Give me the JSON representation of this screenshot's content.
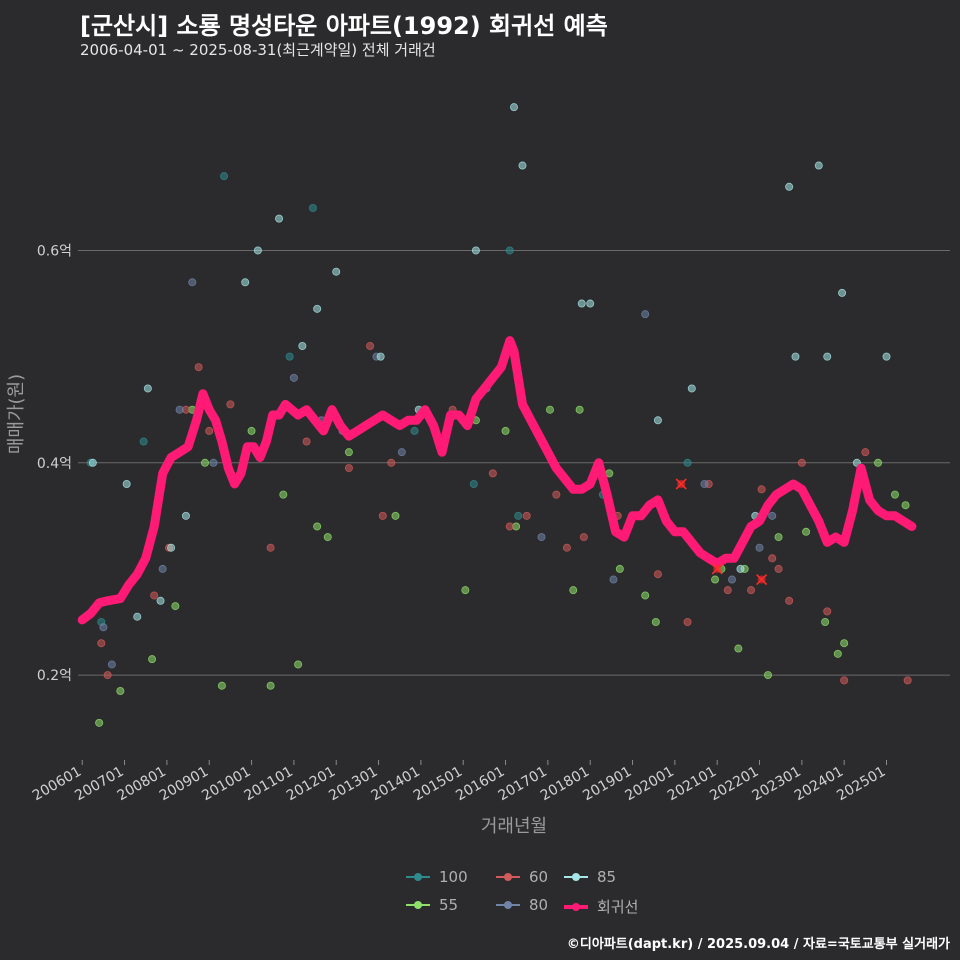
{
  "title": "[군산시] 소룡 명성타운 아파트(1992) 회귀선 예측",
  "subtitle": "2006-04-01 ~ 2025-08-31(최근계약일) 전체 거래건",
  "caption": "©디아파트(dapt.kr) / 2025.09.04 / 자료=국토교통부 실거래가",
  "colors": {
    "background": "#2b2b2d",
    "grid": "#6a6a6a",
    "regression": "#ff1a75",
    "s100": "#2f8a8e",
    "s55": "#8ee06a",
    "s60": "#d25a5a",
    "s80": "#6f84a8",
    "s85": "#a6e6e6",
    "marker": "#ff2a2a"
  },
  "legend": {
    "items": [
      {
        "label": "100",
        "color": "#2f8a8e"
      },
      {
        "label": "60",
        "color": "#d25a5a"
      },
      {
        "label": "85",
        "color": "#a6e6e6"
      },
      {
        "label": "55",
        "color": "#8ee06a"
      },
      {
        "label": "80",
        "color": "#6f84a8"
      },
      {
        "label": "회귀선",
        "color": "#ff1a75"
      }
    ]
  },
  "chart_data": {
    "type": "scatter",
    "title": "[군산시] 소룡 명성타운 아파트(1992) 회귀선 예측",
    "xlabel": "거래년월",
    "ylabel": "매매가(원)",
    "xlim": [
      2005.9,
      2026.5
    ],
    "ylim": [
      0.12,
      0.77
    ],
    "yticks": [
      0.2,
      0.4,
      0.6
    ],
    "ytick_labels": [
      "0.2억",
      "0.4억",
      "0.6억"
    ],
    "xticks": [
      2006,
      2007,
      2008,
      2009,
      2010,
      2011,
      2012,
      2013,
      2014,
      2015,
      2016,
      2017,
      2018,
      2019,
      2020,
      2021,
      2022,
      2023,
      2024,
      2025
    ],
    "xtick_labels": [
      "200601",
      "200701",
      "200801",
      "200901",
      "201001",
      "201101",
      "201201",
      "201301",
      "201401",
      "201501",
      "201601",
      "201701",
      "201801",
      "201901",
      "202001",
      "202101",
      "202201",
      "202301",
      "202401",
      "202501"
    ],
    "regression": {
      "name": "회귀선",
      "x": [
        2006.0,
        2006.2,
        2006.4,
        2006.6,
        2006.9,
        2007.1,
        2007.3,
        2007.5,
        2007.7,
        2007.9,
        2008.1,
        2008.3,
        2008.5,
        2008.7,
        2008.85,
        2009.0,
        2009.15,
        2009.3,
        2009.45,
        2009.6,
        2009.75,
        2009.9,
        2010.05,
        2010.2,
        2010.35,
        2010.5,
        2010.65,
        2010.8,
        2010.95,
        2011.1,
        2011.3,
        2011.5,
        2011.7,
        2011.9,
        2012.1,
        2012.3,
        2012.5,
        2012.7,
        2012.9,
        2013.1,
        2013.3,
        2013.5,
        2013.7,
        2013.9,
        2014.1,
        2014.3,
        2014.5,
        2014.7,
        2014.9,
        2015.1,
        2015.3,
        2015.5,
        2015.7,
        2015.9,
        2016.1,
        2016.2,
        2016.4,
        2016.6,
        2016.8,
        2017.0,
        2017.2,
        2017.4,
        2017.6,
        2017.8,
        2018.0,
        2018.2,
        2018.4,
        2018.6,
        2018.8,
        2019.0,
        2019.2,
        2019.4,
        2019.6,
        2019.8,
        2020.0,
        2020.2,
        2020.4,
        2020.6,
        2020.8,
        2021.0,
        2021.2,
        2021.4,
        2021.6,
        2021.8,
        2022.0,
        2022.2,
        2022.4,
        2022.6,
        2022.8,
        2023.0,
        2023.2,
        2023.4,
        2023.6,
        2023.8,
        2024.0,
        2024.2,
        2024.4,
        2024.6,
        2024.8,
        2025.0,
        2025.2,
        2025.4,
        2025.6
      ],
      "y": [
        0.252,
        0.258,
        0.268,
        0.27,
        0.272,
        0.285,
        0.295,
        0.31,
        0.34,
        0.39,
        0.405,
        0.41,
        0.415,
        0.44,
        0.465,
        0.45,
        0.44,
        0.42,
        0.395,
        0.38,
        0.39,
        0.415,
        0.415,
        0.405,
        0.42,
        0.445,
        0.445,
        0.455,
        0.45,
        0.445,
        0.45,
        0.44,
        0.43,
        0.45,
        0.435,
        0.425,
        0.43,
        0.435,
        0.44,
        0.445,
        0.44,
        0.435,
        0.44,
        0.44,
        0.45,
        0.435,
        0.41,
        0.445,
        0.445,
        0.435,
        0.46,
        0.47,
        0.48,
        0.49,
        0.515,
        0.505,
        0.455,
        0.44,
        0.425,
        0.41,
        0.395,
        0.385,
        0.375,
        0.375,
        0.38,
        0.4,
        0.37,
        0.335,
        0.33,
        0.35,
        0.35,
        0.36,
        0.365,
        0.345,
        0.335,
        0.335,
        0.325,
        0.315,
        0.31,
        0.305,
        0.31,
        0.31,
        0.325,
        0.34,
        0.345,
        0.36,
        0.37,
        0.375,
        0.38,
        0.375,
        0.36,
        0.345,
        0.325,
        0.33,
        0.325,
        0.355,
        0.395,
        0.365,
        0.355,
        0.35,
        0.35,
        0.345,
        0.34
      ]
    },
    "series": [
      {
        "name": "100",
        "x": [
          2006.2,
          2006.45,
          2007.45,
          2009.35,
          2010.9,
          2011.45,
          2013.85,
          2015.25,
          2016.1,
          2016.3,
          2018.3,
          2020.3
        ],
        "y": [
          0.4,
          0.25,
          0.42,
          0.67,
          0.5,
          0.64,
          0.43,
          0.38,
          0.6,
          0.35,
          0.37,
          0.4
        ]
      },
      {
        "name": "55",
        "x": [
          2006.4,
          2006.9,
          2007.65,
          2008.2,
          2008.6,
          2008.9,
          2009.3,
          2010.0,
          2010.45,
          2010.75,
          2011.1,
          2011.55,
          2011.8,
          2012.3,
          2013.4,
          2014.5,
          2015.05,
          2015.3,
          2016.0,
          2016.25,
          2017.05,
          2017.6,
          2017.75,
          2018.45,
          2018.7,
          2019.3,
          2019.55,
          2020.95,
          2021.1,
          2021.5,
          2021.65,
          2022.2,
          2022.45,
          2023.1,
          2023.55,
          2023.85,
          2024.0,
          2024.8,
          2025.2,
          2025.45
        ],
        "y": [
          0.155,
          0.185,
          0.215,
          0.265,
          0.45,
          0.4,
          0.19,
          0.43,
          0.19,
          0.37,
          0.21,
          0.34,
          0.33,
          0.41,
          0.35,
          0.42,
          0.28,
          0.44,
          0.43,
          0.34,
          0.45,
          0.28,
          0.45,
          0.39,
          0.3,
          0.275,
          0.25,
          0.29,
          0.3,
          0.225,
          0.3,
          0.2,
          0.33,
          0.335,
          0.25,
          0.22,
          0.23,
          0.4,
          0.37,
          0.36
        ]
      },
      {
        "name": "60",
        "x": [
          2006.45,
          2006.6,
          2007.7,
          2008.05,
          2008.45,
          2008.75,
          2009.0,
          2009.5,
          2010.45,
          2011.3,
          2012.3,
          2012.8,
          2013.1,
          2013.3,
          2014.75,
          2015.7,
          2016.1,
          2016.5,
          2017.2,
          2017.45,
          2017.85,
          2018.65,
          2019.6,
          2020.3,
          2020.8,
          2021.25,
          2021.8,
          2022.05,
          2022.3,
          2022.45,
          2022.7,
          2023.0,
          2023.6,
          2024.0,
          2024.5,
          2025.5
        ],
        "y": [
          0.23,
          0.2,
          0.275,
          0.32,
          0.45,
          0.49,
          0.43,
          0.455,
          0.32,
          0.42,
          0.395,
          0.51,
          0.35,
          0.4,
          0.45,
          0.39,
          0.34,
          0.35,
          0.37,
          0.32,
          0.33,
          0.35,
          0.295,
          0.25,
          0.38,
          0.28,
          0.28,
          0.375,
          0.31,
          0.3,
          0.27,
          0.4,
          0.26,
          0.195,
          0.41,
          0.195
        ]
      },
      {
        "name": "80",
        "x": [
          2006.5,
          2006.7,
          2007.9,
          2008.3,
          2008.6,
          2009.1,
          2011.0,
          2011.65,
          2012.15,
          2012.95,
          2013.55,
          2015.55,
          2016.85,
          2018.55,
          2019.3,
          2020.7,
          2021.35,
          2022.0,
          2022.3
        ],
        "y": [
          0.245,
          0.21,
          0.3,
          0.45,
          0.57,
          0.4,
          0.48,
          0.44,
          0.43,
          0.5,
          0.41,
          0.47,
          0.33,
          0.29,
          0.54,
          0.38,
          0.29,
          0.32,
          0.35
        ]
      },
      {
        "name": "85",
        "x": [
          2006.25,
          2007.05,
          2007.3,
          2007.55,
          2007.85,
          2008.1,
          2008.45,
          2009.85,
          2010.15,
          2010.65,
          2011.2,
          2011.55,
          2012.0,
          2013.05,
          2013.95,
          2015.3,
          2016.2,
          2016.4,
          2017.8,
          2018.0,
          2019.6,
          2020.4,
          2021.55,
          2021.9,
          2022.7,
          2022.85,
          2023.4,
          2023.6,
          2023.95,
          2024.3,
          2025.0
        ],
        "y": [
          0.4,
          0.38,
          0.255,
          0.47,
          0.27,
          0.32,
          0.35,
          0.57,
          0.6,
          0.63,
          0.51,
          0.545,
          0.58,
          0.5,
          0.45,
          0.6,
          0.735,
          0.68,
          0.55,
          0.55,
          0.44,
          0.47,
          0.3,
          0.35,
          0.66,
          0.5,
          0.68,
          0.5,
          0.56,
          0.4,
          0.5
        ]
      }
    ],
    "highlights": {
      "x": [
        2020.15,
        2021.0,
        2022.05
      ],
      "y": [
        0.38,
        0.3,
        0.29
      ]
    }
  }
}
